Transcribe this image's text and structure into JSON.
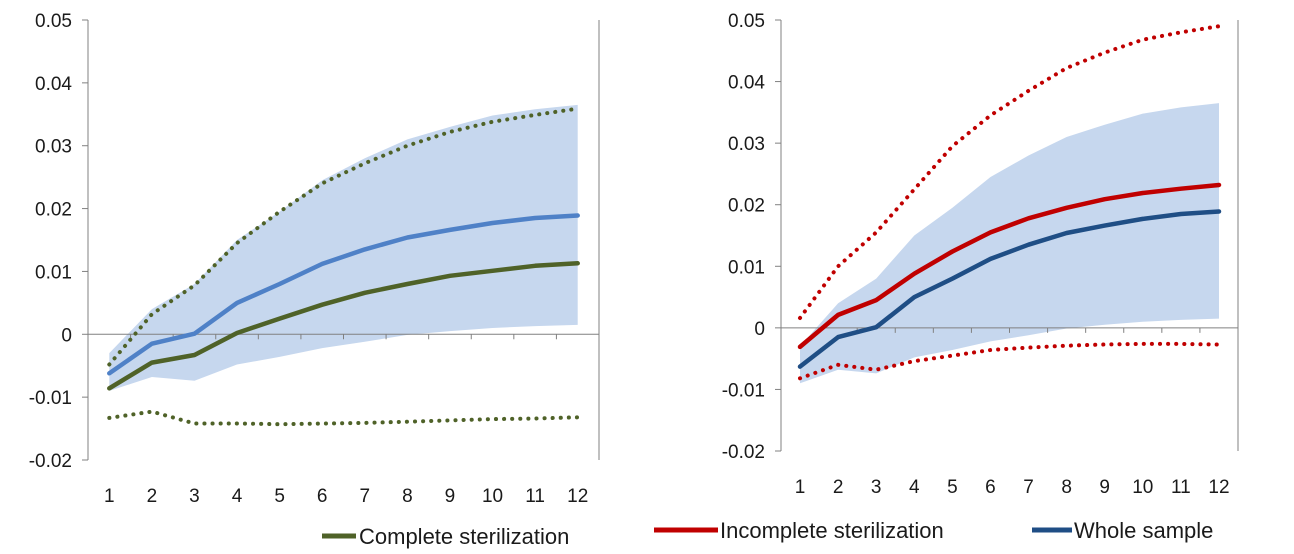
{
  "chart_data": [
    {
      "type": "line",
      "x": [
        1,
        2,
        3,
        4,
        5,
        6,
        7,
        8,
        9,
        10,
        11,
        12
      ],
      "xticks": [
        "1",
        "2",
        "3",
        "4",
        "5",
        "6",
        "7",
        "8",
        "9",
        "10",
        "11",
        "12"
      ],
      "ylim": [
        -0.02,
        0.05
      ],
      "yticks": [
        "0.05",
        "0.04",
        "0.03",
        "0.02",
        "0.01",
        "0",
        "-0.01",
        "-0.02"
      ],
      "ytick_values": [
        0.05,
        0.04,
        0.03,
        0.02,
        0.01,
        0,
        -0.01,
        -0.02
      ],
      "grid": false,
      "band": {
        "color": "#c6d7ee",
        "upper": [
          -0.003,
          0.004,
          0.008,
          0.015,
          0.0195,
          0.0245,
          0.028,
          0.031,
          0.033,
          0.0348,
          0.0358,
          0.0365
        ],
        "lower": [
          -0.009,
          -0.0068,
          -0.0074,
          -0.0048,
          -0.0036,
          -0.0022,
          -0.0012,
          -0.0001,
          0.0005,
          0.001,
          0.0013,
          0.0015
        ]
      },
      "series": [
        {
          "role": "whole",
          "style": "solid",
          "color": "#4f81c7",
          "values": [
            -0.0062,
            -0.0015,
            0.0001,
            0.005,
            0.008,
            0.0112,
            0.0135,
            0.0154,
            0.0166,
            0.0177,
            0.0185,
            0.0189
          ]
        },
        {
          "role": "complete",
          "style": "solid",
          "color": "#4f6228",
          "values": [
            -0.0086,
            -0.0045,
            -0.0033,
            0.0002,
            0.0025,
            0.0047,
            0.0066,
            0.008,
            0.0093,
            0.0101,
            0.0109,
            0.0113
          ]
        },
        {
          "role": "complete-upper",
          "style": "dotted",
          "color": "#4f6228",
          "values": [
            -0.0048,
            0.0032,
            0.0078,
            0.0145,
            0.0195,
            0.024,
            0.0272,
            0.03,
            0.0322,
            0.0338,
            0.0349,
            0.0359
          ]
        },
        {
          "role": "complete-lower",
          "style": "dotted",
          "color": "#4f6228",
          "values": [
            -0.0133,
            -0.0123,
            -0.0142,
            -0.0142,
            -0.0143,
            -0.0142,
            -0.0141,
            -0.0139,
            -0.0137,
            -0.0135,
            -0.0134,
            -0.0132
          ]
        }
      ]
    },
    {
      "type": "line",
      "x": [
        1,
        2,
        3,
        4,
        5,
        6,
        7,
        8,
        9,
        10,
        11,
        12
      ],
      "xticks": [
        "1",
        "2",
        "3",
        "4",
        "5",
        "6",
        "7",
        "8",
        "9",
        "10",
        "11",
        "12"
      ],
      "ylim": [
        -0.02,
        0.05
      ],
      "yticks": [
        "0.05",
        "0.04",
        "0.03",
        "0.02",
        "0.01",
        "0",
        "-0.01",
        "-0.02"
      ],
      "ytick_values": [
        0.05,
        0.04,
        0.03,
        0.02,
        0.01,
        0,
        -0.01,
        -0.02
      ],
      "grid": false,
      "band": {
        "color": "#c6d7ee",
        "upper": [
          -0.003,
          0.004,
          0.008,
          0.015,
          0.0195,
          0.0245,
          0.028,
          0.031,
          0.033,
          0.0348,
          0.0358,
          0.0365
        ],
        "lower": [
          -0.009,
          -0.0068,
          -0.0074,
          -0.0048,
          -0.0036,
          -0.0022,
          -0.0012,
          -0.0001,
          0.0005,
          0.001,
          0.0013,
          0.0015
        ]
      },
      "series": [
        {
          "role": "incomplete",
          "style": "solid",
          "color": "#c00000",
          "values": [
            -0.0031,
            0.0021,
            0.0045,
            0.0088,
            0.0124,
            0.0155,
            0.0178,
            0.0195,
            0.0209,
            0.0219,
            0.0226,
            0.0232
          ]
        },
        {
          "role": "whole",
          "style": "solid",
          "color": "#1f4e85",
          "values": [
            -0.0063,
            -0.0015,
            0.0001,
            0.005,
            0.008,
            0.0112,
            0.0135,
            0.0154,
            0.0166,
            0.0177,
            0.0185,
            0.0189
          ]
        },
        {
          "role": "incomplete-upper",
          "style": "dotted",
          "color": "#c00000",
          "values": [
            0.0016,
            0.01,
            0.0155,
            0.0225,
            0.0295,
            0.0345,
            0.0385,
            0.0422,
            0.0447,
            0.0468,
            0.048,
            0.049
          ]
        },
        {
          "role": "incomplete-lower",
          "style": "dotted",
          "color": "#c00000",
          "values": [
            -0.0082,
            -0.006,
            -0.0068,
            -0.0054,
            -0.0045,
            -0.0036,
            -0.0032,
            -0.0029,
            -0.0027,
            -0.0026,
            -0.0026,
            -0.0027
          ]
        }
      ]
    }
  ],
  "legend": {
    "items": [
      {
        "label": "Complete sterilization",
        "color": "#4f6228"
      },
      {
        "label": "Incomplete sterilization",
        "color": "#c00000"
      },
      {
        "label": "Whole sample",
        "color": "#1f4e85"
      }
    ]
  }
}
